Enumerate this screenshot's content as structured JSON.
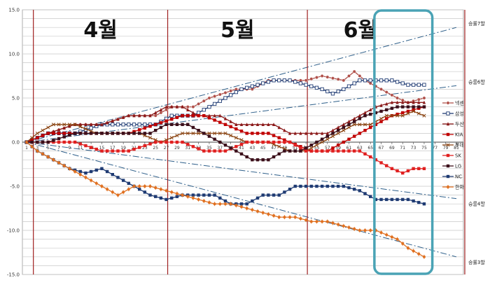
{
  "chart_data": {
    "type": "line",
    "ylim": [
      -15,
      15
    ],
    "yticks": [
      "15.0",
      "10.0",
      "5.0",
      "0.0",
      "-5.0",
      "-10.0",
      "-15.0"
    ],
    "xticks": [
      "1",
      "3",
      "5",
      "7",
      "9",
      "11",
      "13",
      "15",
      "17",
      "19",
      "21",
      "23",
      "25",
      "27",
      "29",
      "31",
      "33",
      "35",
      "37",
      "39",
      "41",
      "43",
      "45",
      "47",
      "49",
      "51",
      "53",
      "55",
      "57",
      "59",
      "61",
      "63",
      "65",
      "67",
      "69",
      "71",
      "73",
      "75",
      "77",
      "79",
      "81"
    ],
    "months": [
      {
        "label": "4월",
        "start_game": 2
      },
      {
        "label": "5월",
        "start_game": 27
      },
      {
        "label": "6월",
        "start_game": 53
      }
    ],
    "reference_lines": [
      {
        "label": "승률7할",
        "y_at_81": 13.0
      },
      {
        "label": "승률6할",
        "y_at_81": 6.4
      },
      {
        "label": "승률4할",
        "y_at_81": -6.4
      },
      {
        "label": "승률3할",
        "y_at_81": -13.0
      }
    ],
    "highlight_games": [
      66,
      76
    ],
    "series": [
      {
        "name": "넥센",
        "color": "#b0504a",
        "marker": "circle",
        "points": [
          [
            1,
            0
          ],
          [
            5,
            1
          ],
          [
            10,
            2
          ],
          [
            15,
            2
          ],
          [
            20,
            3
          ],
          [
            25,
            3
          ],
          [
            28,
            4
          ],
          [
            32,
            4
          ],
          [
            35,
            5
          ],
          [
            40,
            6
          ],
          [
            43,
            6
          ],
          [
            46,
            7
          ],
          [
            50,
            7
          ],
          [
            53,
            7
          ],
          [
            56,
            7.5
          ],
          [
            60,
            7
          ],
          [
            62,
            8
          ],
          [
            64,
            7
          ],
          [
            67,
            6
          ],
          [
            70,
            5
          ],
          [
            72,
            4.5
          ],
          [
            75,
            5
          ]
        ]
      },
      {
        "name": "삼성",
        "color": "#1f3b73",
        "marker": "square-open",
        "points": [
          [
            1,
            0
          ],
          [
            5,
            1
          ],
          [
            10,
            1
          ],
          [
            15,
            2
          ],
          [
            20,
            2
          ],
          [
            25,
            2
          ],
          [
            28,
            3
          ],
          [
            32,
            3
          ],
          [
            35,
            4
          ],
          [
            38,
            5
          ],
          [
            41,
            6
          ],
          [
            44,
            6.5
          ],
          [
            47,
            7
          ],
          [
            50,
            7
          ],
          [
            53,
            6.5
          ],
          [
            56,
            6
          ],
          [
            58,
            5.5
          ],
          [
            60,
            6
          ],
          [
            63,
            7
          ],
          [
            66,
            7
          ],
          [
            69,
            7
          ],
          [
            72,
            6.5
          ],
          [
            75,
            6.5
          ]
        ]
      },
      {
        "name": "두산",
        "color": "#8b1a1a",
        "marker": "triangle",
        "points": [
          [
            1,
            0
          ],
          [
            5,
            1
          ],
          [
            10,
            2
          ],
          [
            15,
            2
          ],
          [
            20,
            3
          ],
          [
            24,
            3
          ],
          [
            27,
            4
          ],
          [
            30,
            4
          ],
          [
            33,
            3
          ],
          [
            37,
            3
          ],
          [
            40,
            2
          ],
          [
            44,
            2
          ],
          [
            47,
            2
          ],
          [
            50,
            1
          ],
          [
            53,
            1
          ],
          [
            57,
            1
          ],
          [
            60,
            2
          ],
          [
            63,
            3
          ],
          [
            66,
            4
          ],
          [
            69,
            4.5
          ],
          [
            72,
            4.5
          ],
          [
            75,
            4.5
          ]
        ]
      },
      {
        "name": "KIA",
        "color": "#c00000",
        "marker": "square",
        "points": [
          [
            1,
            0
          ],
          [
            5,
            1
          ],
          [
            10,
            1
          ],
          [
            15,
            1
          ],
          [
            20,
            1
          ],
          [
            25,
            2
          ],
          [
            30,
            3
          ],
          [
            34,
            3
          ],
          [
            38,
            2
          ],
          [
            42,
            1
          ],
          [
            46,
            1
          ],
          [
            50,
            0
          ],
          [
            54,
            -1
          ],
          [
            57,
            -1
          ],
          [
            60,
            0
          ],
          [
            63,
            1
          ],
          [
            66,
            2
          ],
          [
            69,
            3
          ],
          [
            72,
            3.5
          ],
          [
            75,
            4
          ]
        ]
      },
      {
        "name": "롯데",
        "color": "#8b4513",
        "marker": "x",
        "points": [
          [
            1,
            0
          ],
          [
            3,
            1
          ],
          [
            6,
            2
          ],
          [
            10,
            2
          ],
          [
            14,
            1
          ],
          [
            18,
            1
          ],
          [
            22,
            1
          ],
          [
            26,
            0
          ],
          [
            30,
            1
          ],
          [
            34,
            1
          ],
          [
            38,
            1
          ],
          [
            42,
            0
          ],
          [
            46,
            0
          ],
          [
            50,
            -1
          ],
          [
            53,
            -1
          ],
          [
            56,
            0
          ],
          [
            59,
            1
          ],
          [
            62,
            2
          ],
          [
            65,
            2
          ],
          [
            68,
            3
          ],
          [
            71,
            3
          ],
          [
            73,
            3.5
          ],
          [
            75,
            3
          ]
        ]
      },
      {
        "name": "SK",
        "color": "#e02020",
        "marker": "square",
        "points": [
          [
            1,
            0
          ],
          [
            5,
            0
          ],
          [
            10,
            0
          ],
          [
            15,
            -1
          ],
          [
            20,
            -1
          ],
          [
            25,
            0
          ],
          [
            30,
            0
          ],
          [
            34,
            -1
          ],
          [
            38,
            -1
          ],
          [
            42,
            0
          ],
          [
            46,
            0
          ],
          [
            50,
            0
          ],
          [
            53,
            -1
          ],
          [
            57,
            -1
          ],
          [
            60,
            -1
          ],
          [
            63,
            -1
          ],
          [
            66,
            -2
          ],
          [
            69,
            -3
          ],
          [
            71,
            -3.5
          ],
          [
            73,
            -3
          ],
          [
            75,
            -3
          ]
        ]
      },
      {
        "name": "LG",
        "color": "#3b0f1a",
        "marker": "square",
        "points": [
          [
            1,
            0
          ],
          [
            5,
            0
          ],
          [
            10,
            1
          ],
          [
            15,
            1
          ],
          [
            20,
            1
          ],
          [
            24,
            1
          ],
          [
            27,
            2
          ],
          [
            31,
            2
          ],
          [
            34,
            1
          ],
          [
            37,
            0
          ],
          [
            40,
            -1
          ],
          [
            43,
            -2
          ],
          [
            46,
            -2
          ],
          [
            49,
            -1
          ],
          [
            52,
            -1
          ],
          [
            55,
            0
          ],
          [
            58,
            1
          ],
          [
            61,
            2
          ],
          [
            64,
            3
          ],
          [
            67,
            3.5
          ],
          [
            70,
            4
          ],
          [
            72,
            4
          ],
          [
            75,
            4
          ]
        ]
      },
      {
        "name": "NC",
        "color": "#1f3b73",
        "marker": "square",
        "points": [
          [
            1,
            0
          ],
          [
            3,
            -1
          ],
          [
            6,
            -2
          ],
          [
            9,
            -3
          ],
          [
            12,
            -3.5
          ],
          [
            15,
            -3
          ],
          [
            18,
            -4
          ],
          [
            21,
            -5
          ],
          [
            24,
            -6
          ],
          [
            27,
            -6.5
          ],
          [
            30,
            -6
          ],
          [
            33,
            -6
          ],
          [
            36,
            -6
          ],
          [
            39,
            -7
          ],
          [
            42,
            -7
          ],
          [
            45,
            -6
          ],
          [
            48,
            -6
          ],
          [
            51,
            -5
          ],
          [
            54,
            -5
          ],
          [
            57,
            -5
          ],
          [
            60,
            -5
          ],
          [
            63,
            -5.5
          ],
          [
            66,
            -6.5
          ],
          [
            69,
            -6.5
          ],
          [
            72,
            -6.5
          ],
          [
            75,
            -7
          ]
        ]
      },
      {
        "name": "한화",
        "color": "#e07020",
        "marker": "star",
        "points": [
          [
            1,
            0
          ],
          [
            3,
            -1
          ],
          [
            6,
            -2
          ],
          [
            9,
            -3
          ],
          [
            12,
            -4
          ],
          [
            15,
            -5
          ],
          [
            18,
            -6
          ],
          [
            21,
            -5
          ],
          [
            24,
            -5
          ],
          [
            27,
            -5.5
          ],
          [
            30,
            -6
          ],
          [
            33,
            -6.5
          ],
          [
            36,
            -7
          ],
          [
            39,
            -7
          ],
          [
            42,
            -7.5
          ],
          [
            45,
            -8
          ],
          [
            48,
            -8.5
          ],
          [
            51,
            -8.5
          ],
          [
            54,
            -9
          ],
          [
            57,
            -9
          ],
          [
            60,
            -9.5
          ],
          [
            63,
            -10
          ],
          [
            66,
            -10
          ],
          [
            68,
            -10.5
          ],
          [
            70,
            -11
          ],
          [
            72,
            -12
          ],
          [
            75,
            -13
          ]
        ]
      }
    ]
  }
}
